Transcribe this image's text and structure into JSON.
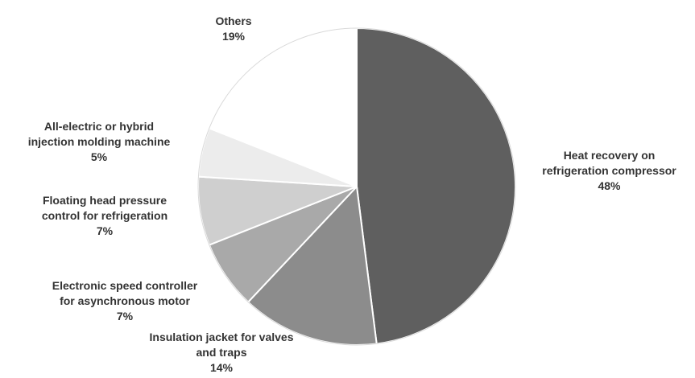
{
  "chart_data": {
    "type": "pie",
    "title": "",
    "start_angle_deg": 0,
    "direction": "clockwise",
    "slices": [
      {
        "label_lines": [
          "Heat recovery on",
          "refrigeration compressor"
        ],
        "value": 48,
        "pct_label": "48%",
        "color": "#5f5f5f"
      },
      {
        "label_lines": [
          "Insulation jacket for valves",
          "and traps"
        ],
        "value": 14,
        "pct_label": "14%",
        "color": "#8c8c8c"
      },
      {
        "label_lines": [
          "Electronic speed controller",
          "for asynchronous motor"
        ],
        "value": 7,
        "pct_label": "7%",
        "color": "#a9a9a9"
      },
      {
        "label_lines": [
          "Floating head pressure",
          "control for refrigeration"
        ],
        "value": 7,
        "pct_label": "7%",
        "color": "#cfcfcf"
      },
      {
        "label_lines": [
          "All-electric or hybrid",
          "injection molding machine"
        ],
        "value": 5,
        "pct_label": "5%",
        "color": "#ececec"
      },
      {
        "label_lines": [
          "Others"
        ],
        "value": 19,
        "pct_label": "19%",
        "color": "#ffffff"
      }
    ]
  }
}
